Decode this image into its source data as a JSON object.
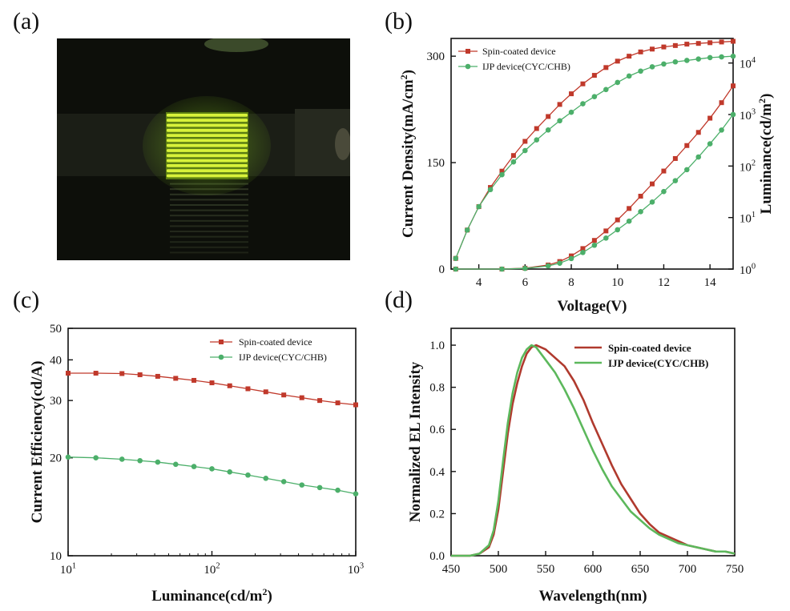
{
  "panel_labels": [
    "(a)",
    "(b)",
    "(c)",
    "(d)"
  ],
  "photo": {
    "subject": "green-emitting device pixel array",
    "background_color": "#0d0f0a",
    "emission_color": "#d8f23a",
    "glow_color": "#7dbb1e"
  },
  "colors": {
    "spin": "#c0392b",
    "ijp": "#4caf6a"
  },
  "chart_data": [
    {
      "panel": "(b)",
      "type": "line",
      "xlabel": "Voltage(V)",
      "ylabel": "Current Density(mA/cm²)",
      "ylabel_right": "Luminance(cd/m²)",
      "xlim": [
        2.8,
        15
      ],
      "ylim": [
        0,
        325
      ],
      "ylim_right": [
        1,
        30000
      ],
      "right_scale": "log",
      "xticks": [
        "4",
        "6",
        "8",
        "10",
        "12",
        "14"
      ],
      "yticks": [
        "0",
        "150",
        "300"
      ],
      "yticks_right": [
        "10",
        "10",
        "10",
        "10",
        "10"
      ],
      "yticks_right_exp": [
        "0",
        "1",
        "2",
        "3",
        "4"
      ],
      "legend": "top-left",
      "series": [
        {
          "name": "Spin-coated device",
          "axis": "left",
          "marker": "square",
          "color": "#c0392b",
          "x": [
            3,
            3.5,
            4,
            4.5,
            5,
            5.5,
            6,
            6.5,
            7,
            7.5,
            8,
            8.5,
            9,
            9.5,
            10,
            10.5,
            11,
            11.5,
            12,
            12.5,
            13,
            13.5,
            14,
            14.5,
            15
          ],
          "y": [
            15,
            55,
            88,
            115,
            138,
            160,
            180,
            198,
            215,
            232,
            247,
            261,
            273,
            284,
            293,
            300,
            306,
            310,
            313,
            315,
            317,
            318,
            319,
            320,
            321
          ]
        },
        {
          "name": "IJP device(CYC/CHB)",
          "axis": "left",
          "marker": "circle",
          "color": "#4caf6a",
          "x": [
            3,
            3.5,
            4,
            4.5,
            5,
            5.5,
            6,
            6.5,
            7,
            7.5,
            8,
            8.5,
            9,
            9.5,
            10,
            10.5,
            11,
            11.5,
            12,
            12.5,
            13,
            13.5,
            14,
            14.5,
            15
          ],
          "y": [
            15,
            55,
            88,
            112,
            133,
            151,
            167,
            182,
            196,
            209,
            221,
            233,
            243,
            253,
            263,
            272,
            279,
            285,
            289,
            292,
            294,
            296,
            298,
            299,
            300
          ]
        },
        {
          "name": "Spin-coated device",
          "axis": "right",
          "marker": "square",
          "color": "#c0392b",
          "x": [
            3,
            5,
            6,
            7,
            7.5,
            8,
            8.5,
            9,
            9.5,
            10,
            10.5,
            11,
            11.5,
            12,
            12.5,
            13,
            13.5,
            14,
            14.5,
            15
          ],
          "y": [
            1,
            1,
            1.04,
            1.2,
            1.4,
            1.8,
            2.5,
            3.6,
            5.5,
            9,
            15,
            26,
            45,
            80,
            140,
            250,
            450,
            850,
            1700,
            3600
          ]
        },
        {
          "name": "IJP device(CYC/CHB)",
          "axis": "right",
          "marker": "circle",
          "color": "#4caf6a",
          "x": [
            3,
            5,
            6,
            7,
            7.5,
            8,
            8.5,
            9,
            9.5,
            10,
            10.5,
            11,
            11.5,
            12,
            12.5,
            13,
            13.5,
            14,
            14.5,
            15
          ],
          "y": [
            1,
            1,
            1.03,
            1.15,
            1.3,
            1.6,
            2.1,
            2.9,
            4,
            5.8,
            8.5,
            13,
            20,
            32,
            52,
            85,
            150,
            270,
            500,
            1000
          ]
        }
      ]
    },
    {
      "panel": "(c)",
      "type": "line",
      "xlabel": "Luminance(cd/m²)",
      "ylabel": "Current Efficiency(cd/A)",
      "xlim": [
        10,
        1000
      ],
      "ylim": [
        10,
        50
      ],
      "xscale": "log",
      "yscale": "log",
      "xticks": [
        "10",
        "10",
        "10"
      ],
      "xticks_exp": [
        "1",
        "2",
        "3"
      ],
      "yticks": [
        "10",
        "20",
        "30",
        "40",
        "50"
      ],
      "legend": "top-right",
      "series": [
        {
          "name": "Spin-coated device",
          "marker": "square",
          "color": "#c0392b",
          "x": [
            10,
            15.6,
            23.7,
            31.6,
            42,
            56,
            75,
            100,
            133,
            178,
            237,
            316,
            422,
            562,
            750,
            1000
          ],
          "y": [
            36.4,
            36.4,
            36.3,
            36,
            35.6,
            35.1,
            34.6,
            34,
            33.3,
            32.6,
            31.9,
            31.2,
            30.6,
            30,
            29.5,
            29.1
          ]
        },
        {
          "name": "IJP device(CYC/CHB)",
          "marker": "circle",
          "color": "#4caf6a",
          "x": [
            10,
            15.6,
            23.7,
            31.6,
            42,
            56,
            75,
            100,
            133,
            178,
            237,
            316,
            422,
            562,
            750,
            1000
          ],
          "y": [
            20.1,
            20,
            19.8,
            19.6,
            19.4,
            19.1,
            18.8,
            18.5,
            18.1,
            17.7,
            17.3,
            16.9,
            16.5,
            16.2,
            15.9,
            15.5
          ]
        }
      ]
    },
    {
      "panel": "(d)",
      "type": "line",
      "xlabel": "Wavelength(nm)",
      "ylabel": "Normalized EL Intensity",
      "xlim": [
        450,
        750
      ],
      "ylim": [
        0,
        1.08
      ],
      "xticks": [
        "450",
        "500",
        "550",
        "600",
        "650",
        "700",
        "750"
      ],
      "yticks": [
        "0.0",
        "0.2",
        "0.4",
        "0.6",
        "0.8",
        "1.0"
      ],
      "legend": "top-right",
      "series": [
        {
          "name": "Spin-coated device",
          "color": "#b03a2e",
          "x": [
            450,
            460,
            470,
            480,
            490,
            495,
            500,
            505,
            510,
            515,
            520,
            525,
            530,
            535,
            540,
            545,
            550,
            555,
            560,
            570,
            580,
            590,
            600,
            610,
            620,
            630,
            640,
            650,
            660,
            670,
            680,
            690,
            700,
            710,
            720,
            730,
            740,
            750
          ],
          "y": [
            0.0,
            0.0,
            0.0,
            0.01,
            0.04,
            0.1,
            0.22,
            0.4,
            0.58,
            0.72,
            0.82,
            0.9,
            0.96,
            0.99,
            1.0,
            0.99,
            0.98,
            0.96,
            0.94,
            0.9,
            0.83,
            0.74,
            0.63,
            0.53,
            0.43,
            0.34,
            0.27,
            0.2,
            0.15,
            0.11,
            0.09,
            0.07,
            0.05,
            0.04,
            0.03,
            0.02,
            0.02,
            0.01
          ]
        },
        {
          "name": "IJP device(CYC/CHB)",
          "color": "#5cb85c",
          "x": [
            450,
            460,
            470,
            480,
            490,
            495,
            500,
            505,
            510,
            515,
            520,
            525,
            530,
            535,
            540,
            545,
            550,
            555,
            560,
            570,
            580,
            590,
            600,
            610,
            620,
            630,
            640,
            650,
            660,
            670,
            680,
            690,
            700,
            710,
            720,
            730,
            740,
            750
          ],
          "y": [
            0.0,
            0.0,
            0.0,
            0.01,
            0.05,
            0.12,
            0.26,
            0.45,
            0.63,
            0.77,
            0.87,
            0.94,
            0.98,
            1.0,
            0.99,
            0.96,
            0.93,
            0.9,
            0.87,
            0.79,
            0.7,
            0.6,
            0.5,
            0.41,
            0.33,
            0.27,
            0.21,
            0.17,
            0.13,
            0.1,
            0.08,
            0.06,
            0.05,
            0.04,
            0.03,
            0.02,
            0.02,
            0.01
          ]
        }
      ]
    }
  ]
}
